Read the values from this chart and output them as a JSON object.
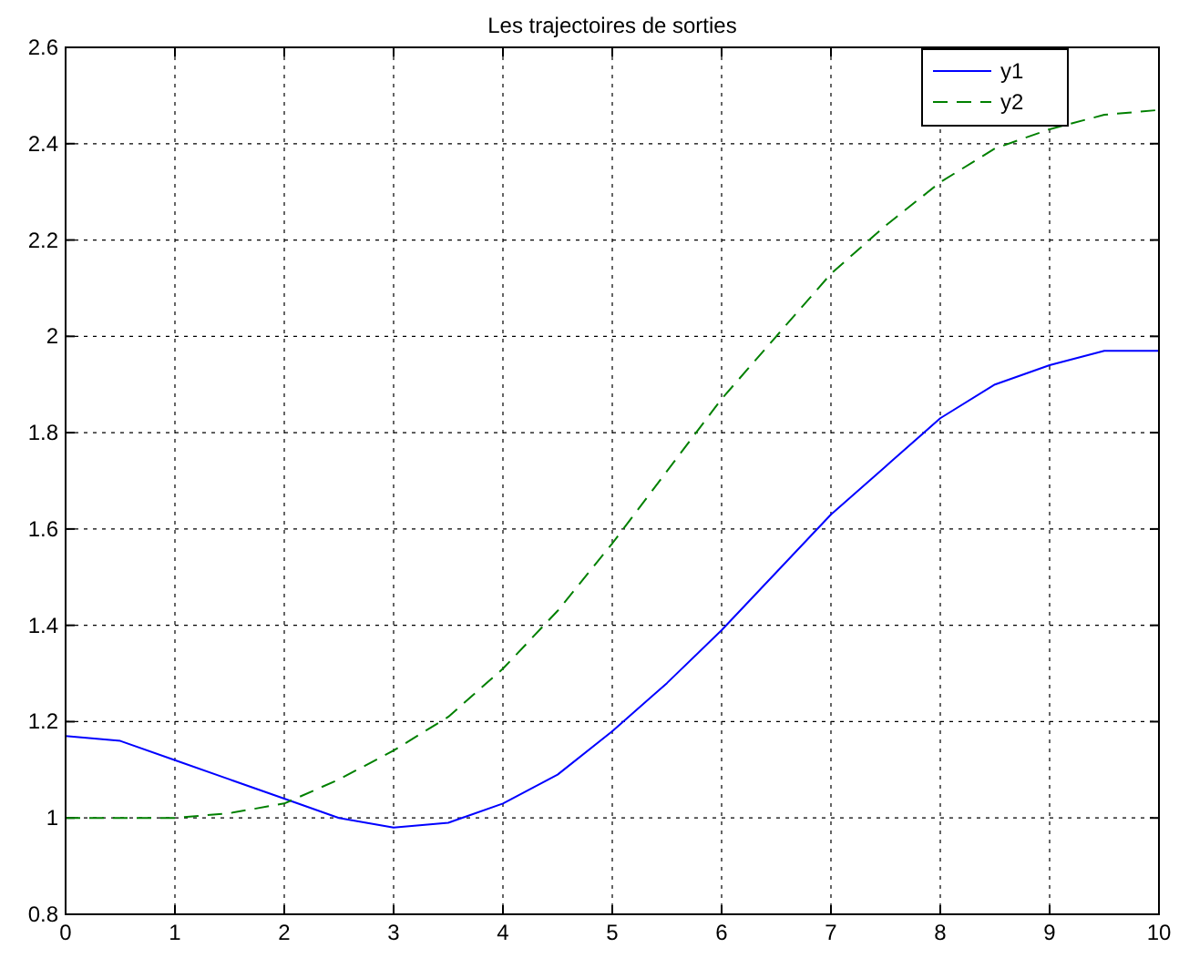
{
  "chart_data": {
    "type": "line",
    "title": "Les trajectoires de sorties",
    "x": [
      0,
      0.5,
      1,
      1.5,
      2,
      2.5,
      3,
      3.5,
      4,
      4.5,
      5,
      5.5,
      6,
      6.5,
      7,
      7.5,
      8,
      8.5,
      9,
      9.5,
      10
    ],
    "series": [
      {
        "name": "y1",
        "color": "#0000ff",
        "line_style": "solid",
        "values": [
          1.17,
          1.16,
          1.12,
          1.08,
          1.04,
          1.0,
          0.98,
          0.99,
          1.03,
          1.09,
          1.18,
          1.28,
          1.39,
          1.51,
          1.63,
          1.73,
          1.83,
          1.9,
          1.94,
          1.97,
          1.97
        ]
      },
      {
        "name": "y2",
        "color": "#008000",
        "line_style": "dashed",
        "values": [
          1.0,
          1.0,
          1.0,
          1.01,
          1.03,
          1.08,
          1.14,
          1.21,
          1.31,
          1.43,
          1.57,
          1.72,
          1.87,
          2.0,
          2.13,
          2.23,
          2.32,
          2.39,
          2.43,
          2.46,
          2.47
        ]
      }
    ],
    "xlim": [
      0,
      10
    ],
    "xticks": [
      0,
      1,
      2,
      3,
      4,
      5,
      6,
      7,
      8,
      9,
      10
    ],
    "ylim": [
      0.8,
      2.6
    ],
    "yticks": [
      0.8,
      1,
      1.2,
      1.4,
      1.6,
      1.8,
      2,
      2.2,
      2.4,
      2.6
    ],
    "grid": true,
    "legend": "top right"
  }
}
